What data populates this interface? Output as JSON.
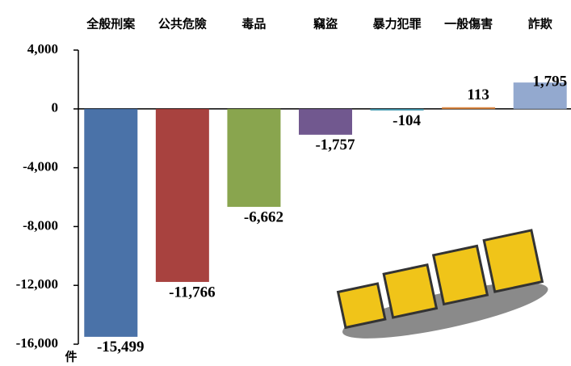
{
  "chart_data": {
    "type": "bar",
    "categories": [
      "全般刑案",
      "公共危險",
      "毒品",
      "竊盜",
      "暴力犯罪",
      "一般傷害",
      "詐欺"
    ],
    "values": [
      -15499,
      -11766,
      -6662,
      -1757,
      -104,
      113,
      1795
    ],
    "value_labels": [
      "-15,499",
      "-11,766",
      "-6,662",
      "-1,757",
      "-104",
      "113",
      "1,795"
    ],
    "colors": [
      "#4a72a8",
      "#a8423f",
      "#89a54e",
      "#71588f",
      "#4198af",
      "#db843d",
      "#93a9cf"
    ],
    "unit_label": "件",
    "ylim": [
      -16000,
      4000
    ],
    "yticks": [
      {
        "value": -16000,
        "label": "-16,000"
      },
      {
        "value": -12000,
        "label": "-12,000"
      },
      {
        "value": -8000,
        "label": "-8,000"
      },
      {
        "value": -4000,
        "label": "-4,000"
      },
      0,
      {
        "value": 4000,
        "label": "4,000"
      }
    ]
  }
}
